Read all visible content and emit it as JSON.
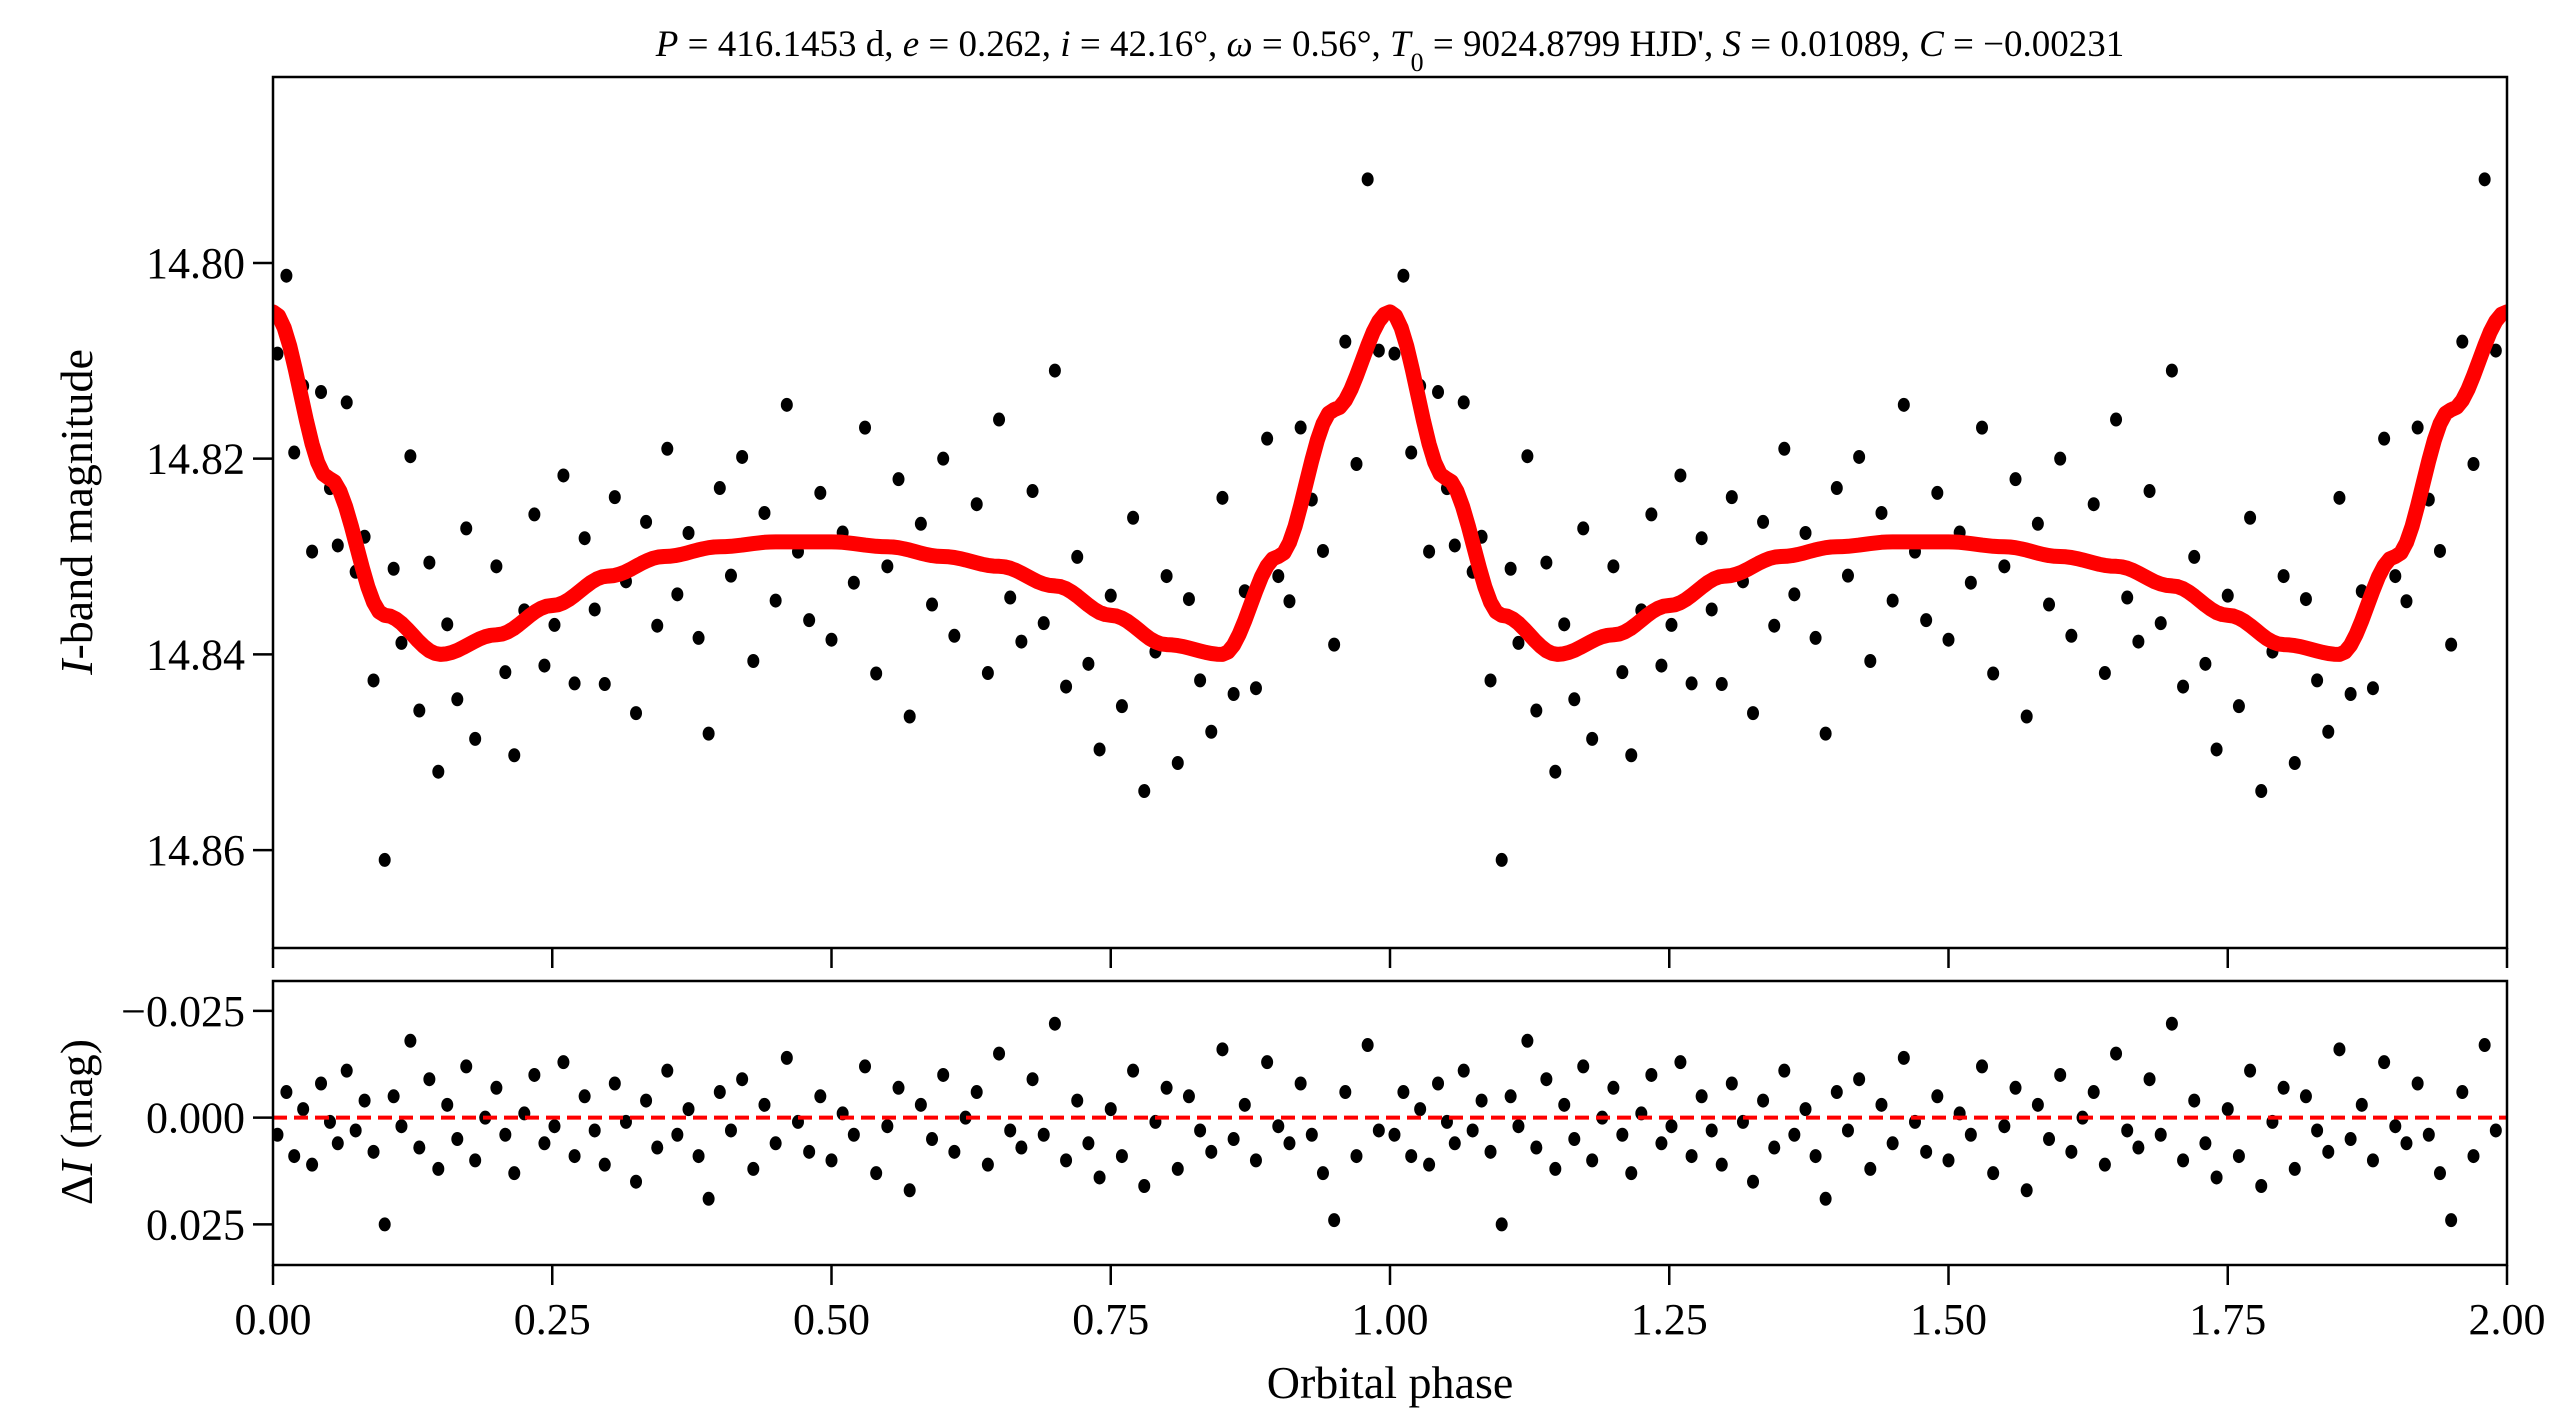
{
  "chart_data": [
    {
      "type": "scatter",
      "panel": "light-curve",
      "title_parts": [
        {
          "t": "P",
          "i": true
        },
        {
          "t": " = 416.1453 d, "
        },
        {
          "t": "e",
          "i": true
        },
        {
          "t": " = 0.262, "
        },
        {
          "t": "i",
          "i": true
        },
        {
          "t": " = 42.16°, "
        },
        {
          "t": "ω",
          "i": true
        },
        {
          "t": " = 0.56°, "
        },
        {
          "t": "T",
          "i": true
        },
        {
          "t": "0",
          "sub": true
        },
        {
          "t": " = 9024.8799 HJD', "
        },
        {
          "t": "S",
          "i": true
        },
        {
          "t": " = 0.01089, "
        },
        {
          "t": "C",
          "i": true
        },
        {
          "t": " = −0.00231"
        }
      ],
      "ylabel_parts": [
        {
          "t": "I",
          "i": true
        },
        {
          "t": "-band magnitude"
        }
      ],
      "xlim": [
        0,
        2
      ],
      "ylim": [
        14.87,
        14.781
      ],
      "y_inverted": true,
      "yticks": [
        "14.80",
        "14.82",
        "14.84",
        "14.86"
      ],
      "ytick_values": [
        14.8,
        14.82,
        14.84,
        14.86
      ],
      "model_color": "#ff0000",
      "point_color": "#000000",
      "model_curve": {
        "phase": [
          0,
          0.05,
          0.1,
          0.15,
          0.2,
          0.25,
          0.3,
          0.35,
          0.4,
          0.45,
          0.5,
          0.55,
          0.6,
          0.65,
          0.7,
          0.75,
          0.8,
          0.85,
          0.9,
          0.95,
          1.0
        ],
        "mag": [
          14.805,
          14.822,
          14.836,
          14.84,
          14.838,
          14.835,
          14.832,
          14.83,
          14.829,
          14.8285,
          14.8285,
          14.829,
          14.83,
          14.831,
          14.833,
          14.836,
          14.839,
          14.84,
          14.83,
          14.815,
          14.805
        ]
      },
      "note": "observed magnitude = model + residual; points repeated at phase + 1"
    },
    {
      "type": "scatter",
      "panel": "residuals",
      "ylabel_parts": [
        {
          "t": "Δ"
        },
        {
          "t": "I",
          "i": true
        },
        {
          "t": " (mag)"
        }
      ],
      "xlabel": "Orbital phase",
      "xlim": [
        0,
        2
      ],
      "ylim": [
        0.0345,
        -0.032
      ],
      "y_inverted": true,
      "yticks": [
        "−0.025",
        "0.000",
        "0.025"
      ],
      "ytick_values": [
        -0.025,
        0,
        0.025
      ],
      "xticks": [
        "0.00",
        "0.25",
        "0.50",
        "0.75",
        "1.00",
        "1.25",
        "1.50",
        "1.75",
        "2.00"
      ],
      "xtick_values": [
        0,
        0.25,
        0.5,
        0.75,
        1.0,
        1.25,
        1.5,
        1.75,
        2.0
      ],
      "zero_line_color": "#ff0000",
      "points": {
        "phase": [
          0.004,
          0.012,
          0.019,
          0.027,
          0.035,
          0.043,
          0.051,
          0.058,
          0.066,
          0.074,
          0.082,
          0.09,
          0.1,
          0.108,
          0.115,
          0.123,
          0.131,
          0.14,
          0.148,
          0.156,
          0.165,
          0.173,
          0.181,
          0.19,
          0.2,
          0.208,
          0.216,
          0.225,
          0.234,
          0.243,
          0.252,
          0.26,
          0.27,
          0.279,
          0.288,
          0.297,
          0.306,
          0.316,
          0.325,
          0.334,
          0.344,
          0.353,
          0.362,
          0.372,
          0.381,
          0.39,
          0.4,
          0.41,
          0.42,
          0.43,
          0.44,
          0.45,
          0.46,
          0.47,
          0.48,
          0.49,
          0.5,
          0.51,
          0.52,
          0.53,
          0.54,
          0.55,
          0.56,
          0.57,
          0.58,
          0.59,
          0.6,
          0.61,
          0.62,
          0.63,
          0.64,
          0.65,
          0.66,
          0.67,
          0.68,
          0.69,
          0.7,
          0.71,
          0.72,
          0.73,
          0.74,
          0.75,
          0.76,
          0.77,
          0.78,
          0.79,
          0.8,
          0.81,
          0.82,
          0.83,
          0.84,
          0.85,
          0.86,
          0.87,
          0.88,
          0.89,
          0.9,
          0.91,
          0.92,
          0.93,
          0.94,
          0.95,
          0.96,
          0.97,
          0.98,
          0.99
        ],
        "residual": [
          0.004,
          -0.006,
          0.009,
          -0.002,
          0.011,
          -0.008,
          0.001,
          0.006,
          -0.011,
          0.003,
          -0.004,
          0.008,
          0.025,
          -0.005,
          0.002,
          -0.018,
          0.007,
          -0.009,
          0.012,
          -0.003,
          0.005,
          -0.012,
          0.01,
          0.0,
          -0.007,
          0.004,
          0.013,
          -0.001,
          -0.01,
          0.006,
          0.002,
          -0.013,
          0.009,
          -0.005,
          0.003,
          0.011,
          -0.008,
          0.001,
          0.015,
          -0.004,
          0.007,
          -0.011,
          0.004,
          -0.002,
          0.009,
          0.019,
          -0.006,
          0.003,
          -0.009,
          0.012,
          -0.003,
          0.006,
          -0.014,
          0.001,
          0.008,
          -0.005,
          0.01,
          -0.001,
          0.004,
          -0.012,
          0.013,
          0.002,
          -0.007,
          0.017,
          -0.003,
          0.005,
          -0.01,
          0.008,
          0.0,
          -0.006,
          0.011,
          -0.015,
          0.003,
          0.007,
          -0.009,
          0.004,
          -0.022,
          0.01,
          -0.004,
          0.006,
          0.014,
          -0.002,
          0.009,
          -0.011,
          0.016,
          0.001,
          -0.007,
          0.012,
          -0.005,
          0.003,
          0.008,
          -0.016,
          0.005,
          -0.003,
          0.01,
          -0.013,
          0.002,
          0.006,
          -0.008,
          0.004,
          0.013,
          0.024,
          -0.006,
          0.009,
          -0.017,
          0.003
        ]
      }
    }
  ]
}
